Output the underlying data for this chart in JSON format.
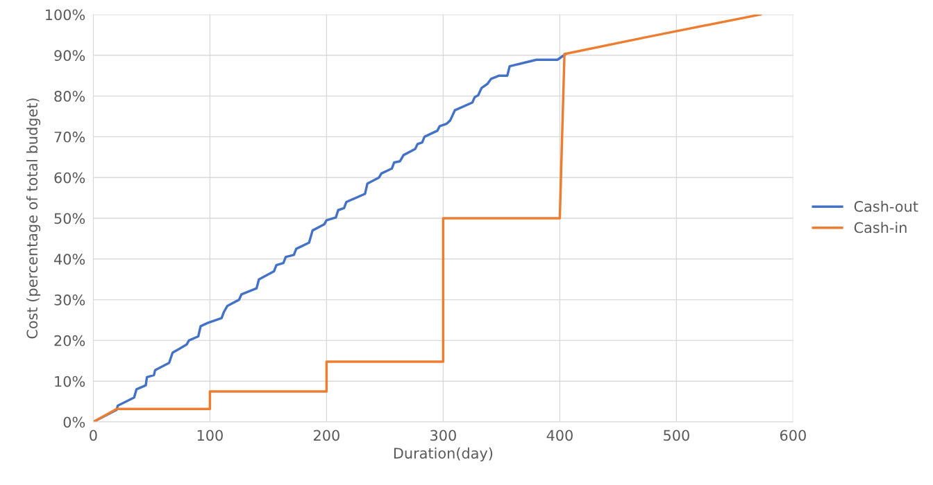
{
  "chart_data": {
    "type": "line",
    "xlabel": "Duration(day)",
    "ylabel": "Cost (percentage of total budget)",
    "xlim": [
      0,
      600
    ],
    "xticks": [
      0,
      100,
      200,
      300,
      400,
      500,
      600
    ],
    "ylim": [
      0,
      100
    ],
    "yticks": [
      {
        "value": 0,
        "label": "0%"
      },
      {
        "value": 10,
        "label": "10%"
      },
      {
        "value": 20,
        "label": "20%"
      },
      {
        "value": 30,
        "label": "30%"
      },
      {
        "value": 40,
        "label": "40%"
      },
      {
        "value": 50,
        "label": "50%"
      },
      {
        "value": 60,
        "label": "60%"
      },
      {
        "value": 70,
        "label": "70%"
      },
      {
        "value": 80,
        "label": "80%"
      },
      {
        "value": 90,
        "label": "90%"
      },
      {
        "value": 100,
        "label": "100%"
      }
    ],
    "grid": true,
    "legend": "right",
    "marker": "none",
    "line_style": "solid",
    "series": [
      {
        "name": "Cash-out",
        "color": "#4472c4",
        "x": [
          0,
          20,
          21,
          35,
          37,
          45,
          46,
          52,
          53,
          65,
          68,
          80,
          82,
          90,
          92,
          98,
          110,
          112,
          115,
          125,
          127,
          140,
          142,
          155,
          157,
          163,
          165,
          172,
          174,
          185,
          188,
          198,
          200,
          208,
          210,
          215,
          217,
          233,
          235,
          245,
          247,
          256,
          258,
          263,
          266,
          276,
          278,
          282,
          284,
          295,
          297,
          303,
          306,
          310,
          325,
          327,
          330,
          333,
          338,
          341,
          348,
          355,
          357,
          380,
          398,
          405
        ],
        "values": [
          0,
          3,
          4,
          6,
          8,
          9,
          11,
          11.5,
          12.7,
          14.5,
          17,
          19,
          20,
          21,
          23.5,
          24.3,
          25.5,
          27,
          28.5,
          30,
          31.3,
          32.8,
          35,
          37,
          38.5,
          39,
          40.5,
          41,
          42.5,
          44,
          47,
          48.5,
          49.5,
          50.2,
          52,
          52.5,
          54,
          56,
          58.5,
          60,
          61,
          62.2,
          63.7,
          64,
          65.5,
          67,
          68.2,
          68.6,
          70,
          71.5,
          72.6,
          73.2,
          74,
          76.5,
          78.4,
          79.7,
          80.2,
          82,
          83,
          84.2,
          85,
          85,
          87.3,
          88.9,
          88.9,
          90.3
        ]
      },
      {
        "name": "Cash-in",
        "color": "#ed7d31",
        "x": [
          0,
          20,
          100,
          100,
          200,
          200,
          300,
          300,
          400,
          404,
          475,
          572
        ],
        "values": [
          0,
          3.2,
          3.2,
          7.5,
          7.5,
          14.8,
          14.8,
          50,
          50,
          90.3,
          94.5,
          100
        ]
      }
    ]
  }
}
